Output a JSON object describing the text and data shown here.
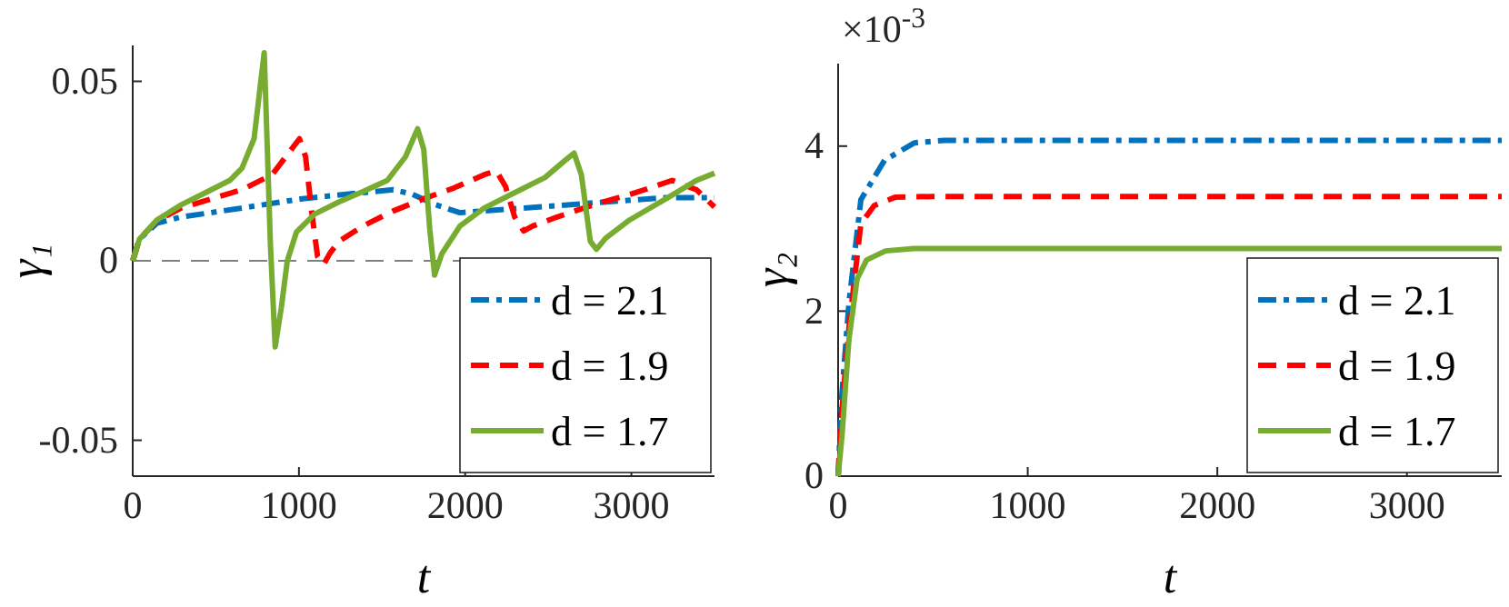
{
  "chart_data": [
    {
      "type": "line",
      "xlabel": "t",
      "ylabel": "γ₁",
      "xlim": [
        0,
        3500
      ],
      "xticks": [
        0,
        1000,
        2000,
        3000
      ],
      "ylim": [
        -0.06,
        0.06
      ],
      "yticks": [
        -0.05,
        0,
        0.05
      ],
      "legend": "bottom right",
      "ref_lines": [
        {
          "axis": "y",
          "value": 0,
          "color": "#808080",
          "line_style": "dashed"
        }
      ],
      "series": [
        {
          "name": "d = 2.1",
          "color": "#0072bd",
          "line_style": "dashdot",
          "x": [
            0,
            40,
            146,
            292,
            657,
            1021,
            1386,
            1568,
            1678,
            1824,
            1969,
            2115,
            2480,
            2845,
            3209,
            3500
          ],
          "values": [
            0,
            0.006,
            0.0105,
            0.0122,
            0.0147,
            0.0173,
            0.019,
            0.0198,
            0.0186,
            0.0156,
            0.0134,
            0.0139,
            0.0151,
            0.0164,
            0.0176,
            0.0176
          ]
        },
        {
          "name": "d = 1.9",
          "color": "#ff0000",
          "line_style": "dashed",
          "x": [
            0,
            40,
            146,
            292,
            657,
            839,
            1003,
            1040,
            1076,
            1112,
            1149,
            1185,
            1240,
            1386,
            1568,
            1751,
            1933,
            2115,
            2188,
            2243,
            2298,
            2352,
            2407,
            2553,
            2772,
            3027,
            3246,
            3392,
            3500
          ],
          "values": [
            0,
            0.006,
            0.0112,
            0.0147,
            0.0198,
            0.024,
            0.034,
            0.029,
            0.0139,
            0.0012,
            -0.001,
            0.002,
            0.0054,
            0.0097,
            0.0139,
            0.0173,
            0.0203,
            0.024,
            0.025,
            0.0207,
            0.0122,
            0.0083,
            0.0097,
            0.0122,
            0.0156,
            0.019,
            0.0224,
            0.0198,
            0.015
          ]
        },
        {
          "name": "d = 1.7",
          "color": "#77ac30",
          "line_style": "solid",
          "x": [
            0,
            40,
            146,
            292,
            438,
            584,
            657,
            730,
            791,
            828,
            857,
            894,
            930,
            985,
            1094,
            1240,
            1386,
            1532,
            1641,
            1714,
            1751,
            1787,
            1816,
            1860,
            1969,
            2115,
            2298,
            2480,
            2589,
            2655,
            2699,
            2753,
            2790,
            2845,
            2990,
            3209,
            3392,
            3500
          ],
          "values": [
            0,
            0.006,
            0.0114,
            0.0156,
            0.019,
            0.0224,
            0.0258,
            0.034,
            0.058,
            0.005,
            -0.024,
            -0.013,
            0,
            0.008,
            0.013,
            0.0164,
            0.0193,
            0.0224,
            0.029,
            0.0368,
            0.031,
            0.0088,
            -0.004,
            0.002,
            0.0097,
            0.0147,
            0.019,
            0.0232,
            0.0275,
            0.03,
            0.024,
            0.0054,
            0.0032,
            0.0063,
            0.0114,
            0.0173,
            0.0224,
            0.0244
          ]
        }
      ]
    },
    {
      "type": "line",
      "xlabel": "t",
      "ylabel": "γ₂",
      "xlim": [
        0,
        3500
      ],
      "xticks": [
        0,
        1000,
        2000,
        3000
      ],
      "ylim": [
        0,
        5
      ],
      "yticks": [
        0,
        2,
        4
      ],
      "legend": "bottom right",
      "annotations": [
        "×10$^{-3}$"
      ],
      "series": [
        {
          "name": "d = 2.1",
          "color": "#0072bd",
          "line_style": "dashdot",
          "x": [
            0,
            20,
            57,
            120,
            245,
            403,
            560,
            3500
          ],
          "values": [
            0,
            1.0,
            2.1,
            3.35,
            3.83,
            4.04,
            4.07,
            4.07
          ]
        },
        {
          "name": "d = 1.9",
          "color": "#ff0000",
          "line_style": "dashed",
          "x": [
            0,
            20,
            57,
            120,
            190,
            300,
            500,
            3500
          ],
          "values": [
            0,
            0.8,
            1.8,
            3.06,
            3.28,
            3.38,
            3.39,
            3.39
          ]
        },
        {
          "name": "d = 1.7",
          "color": "#77ac30",
          "line_style": "solid",
          "x": [
            0,
            20,
            57,
            100,
            150,
            250,
            400,
            3500
          ],
          "values": [
            0,
            0.48,
            1.66,
            2.39,
            2.62,
            2.73,
            2.76,
            2.76
          ]
        }
      ]
    }
  ]
}
